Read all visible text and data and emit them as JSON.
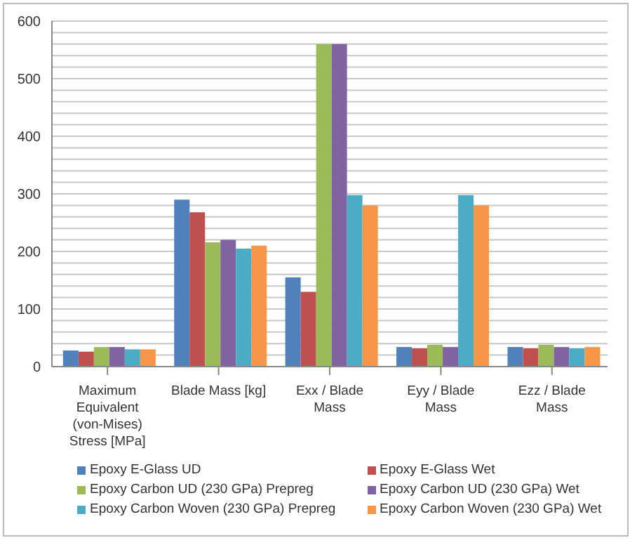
{
  "chart_data": {
    "type": "bar",
    "categories": [
      "Maximum Equivalent (von-Mises) Stress [MPa]",
      "Blade Mass [kg]",
      "Exx / Blade Mass",
      "Eyy / Blade Mass",
      "Ezz / Blade Mass"
    ],
    "series": [
      {
        "name": "Epoxy E-Glass UD",
        "color": "#4f81bd",
        "values": [
          28,
          290,
          155,
          34,
          34
        ]
      },
      {
        "name": "Epoxy E-Glass Wet",
        "color": "#c0504d",
        "values": [
          26,
          268,
          130,
          32,
          32
        ]
      },
      {
        "name": "Epoxy Carbon UD (230 GPa) Prepreg",
        "color": "#9bbb59",
        "values": [
          34,
          216,
          560,
          38,
          38
        ]
      },
      {
        "name": "Epoxy Carbon UD (230 GPa) Wet",
        "color": "#8064a2",
        "values": [
          34,
          220,
          560,
          34,
          34
        ]
      },
      {
        "name": "Epoxy Carbon Woven (230 GPa) Prepreg",
        "color": "#4bacc6",
        "values": [
          30,
          205,
          298,
          298,
          32
        ]
      },
      {
        "name": "Epoxy Carbon Woven (230 GPa) Wet",
        "color": "#f79646",
        "values": [
          30,
          210,
          280,
          280,
          34
        ]
      }
    ],
    "ylim": [
      0,
      600
    ],
    "yticks": [
      0,
      {
        "value": 20,
        "label": null
      },
      {
        "value": 40,
        "label": null
      },
      {
        "value": 60,
        "label": null
      },
      {
        "value": 80,
        "label": null
      },
      100,
      {
        "value": 120,
        "label": null
      },
      {
        "value": 140,
        "label": null
      },
      {
        "value": 160,
        "label": null
      },
      {
        "value": 180,
        "label": null
      },
      200,
      {
        "value": 220,
        "label": null
      },
      {
        "value": 240,
        "label": null
      },
      {
        "value": 260,
        "label": null
      },
      {
        "value": 280,
        "label": null
      },
      300,
      {
        "value": 320,
        "label": null
      },
      {
        "value": 340,
        "label": null
      },
      {
        "value": 360,
        "label": null
      },
      {
        "value": 380,
        "label": null
      },
      400,
      {
        "value": 420,
        "label": null
      },
      {
        "value": 440,
        "label": null
      },
      {
        "value": 460,
        "label": null
      },
      {
        "value": 480,
        "label": null
      },
      500,
      {
        "value": 520,
        "label": null
      },
      {
        "value": 540,
        "label": null
      },
      {
        "value": 560,
        "label": null
      },
      {
        "value": 580,
        "label": null
      },
      600
    ],
    "grid": "y",
    "legend": "bottom"
  }
}
